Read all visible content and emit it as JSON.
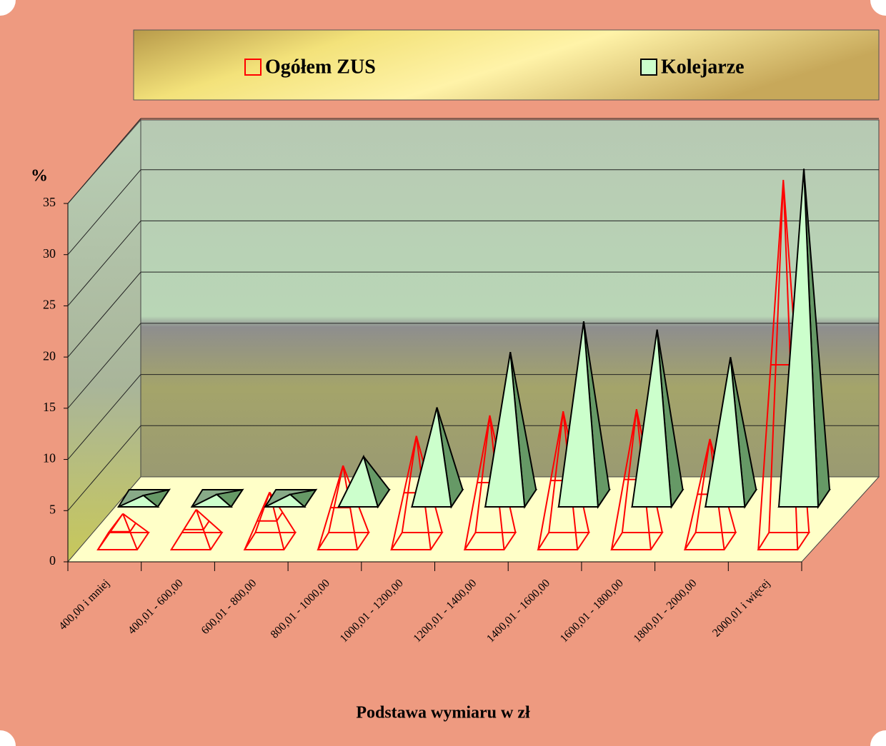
{
  "chart_data": {
    "type": "pyramid3d",
    "x_label": "Podstawa wymiaru w zł",
    "y_label": "%",
    "categories": [
      "400,00 i mniej",
      "400,01 - 600,00",
      "600,01 - 800,00",
      "800,01 - 1000,00",
      "1000,01 - 1200,00",
      "1200,01 - 1400,00",
      "1400,01 - 1600,00",
      "1600,01 - 1800,00",
      "1800,01 - 2000,00",
      "2000,01 i więcej"
    ],
    "series": [
      {
        "name": "Ogółem  ZUS",
        "color": "#ff0000",
        "values": [
          2.4,
          2.8,
          4.5,
          7.1,
          10.0,
          12.0,
          12.4,
          12.6,
          9.7,
          35.0
        ]
      },
      {
        "name": "Kolejarze",
        "color": "#ccffcc",
        "values": [
          0,
          0.1,
          0.1,
          3.8,
          8.6,
          14.0,
          17.0,
          16.2,
          13.5,
          31.9
        ]
      }
    ],
    "ylim": [
      0,
      35
    ],
    "yticks": [
      0,
      5,
      10,
      15,
      20,
      25,
      30,
      35
    ],
    "grid": true
  }
}
